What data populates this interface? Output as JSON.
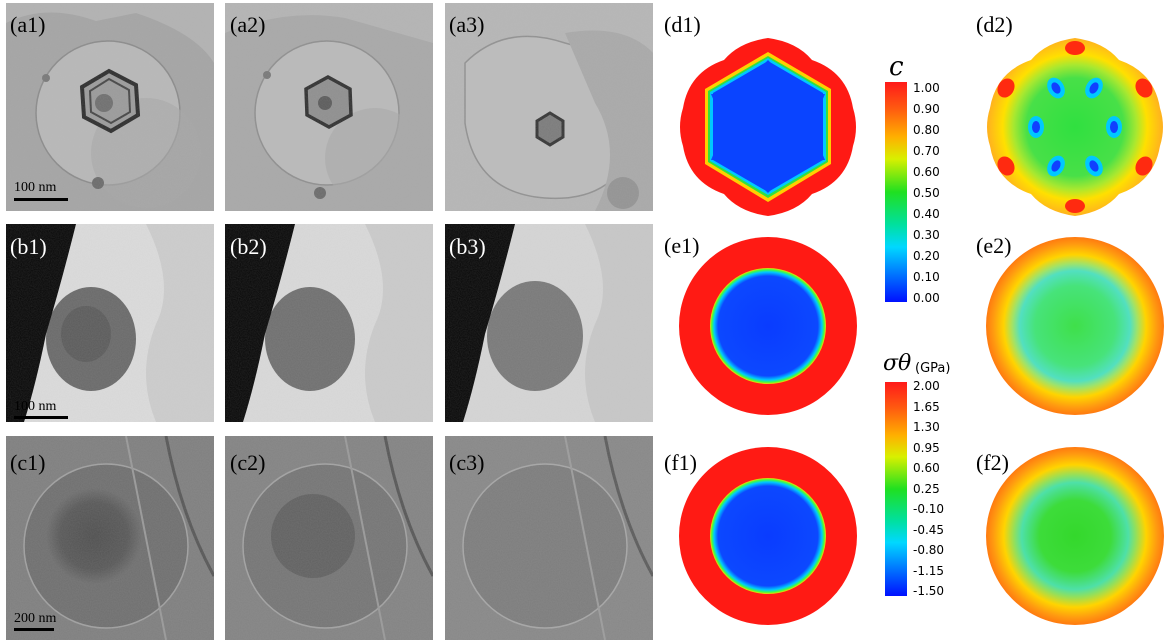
{
  "tem_panels": {
    "a1": {
      "label": "(a1)",
      "scale": "100 nm"
    },
    "a2": {
      "label": "(a2)"
    },
    "a3": {
      "label": "(a3)"
    },
    "b1": {
      "label": "(b1)",
      "scale": "100 nm"
    },
    "b2": {
      "label": "(b2)"
    },
    "b3": {
      "label": "(b3)"
    },
    "c1": {
      "label": "(c1)",
      "scale": "200 nm"
    },
    "c2": {
      "label": "(c2)"
    },
    "c3": {
      "label": "(c3)"
    }
  },
  "sim_panels": {
    "d1": {
      "label": "(d1)"
    },
    "d2": {
      "label": "(d2)"
    },
    "e1": {
      "label": "(e1)"
    },
    "e2": {
      "label": "(e2)"
    },
    "f1": {
      "label": "(f1)"
    },
    "f2": {
      "label": "(f2)"
    }
  },
  "colorbars": {
    "concentration": {
      "symbol": "c",
      "ticks": [
        "1.00",
        "0.90",
        "0.80",
        "0.70",
        "0.60",
        "0.50",
        "0.40",
        "0.30",
        "0.20",
        "0.10",
        "0.00"
      ]
    },
    "stress": {
      "symbol": "σθ",
      "unit": "(GPa)",
      "ticks": [
        "2.00",
        "1.65",
        "1.30",
        "0.95",
        "0.60",
        "0.25",
        "-0.10",
        "-0.45",
        "-0.80",
        "-1.15",
        "-1.50"
      ]
    }
  }
}
